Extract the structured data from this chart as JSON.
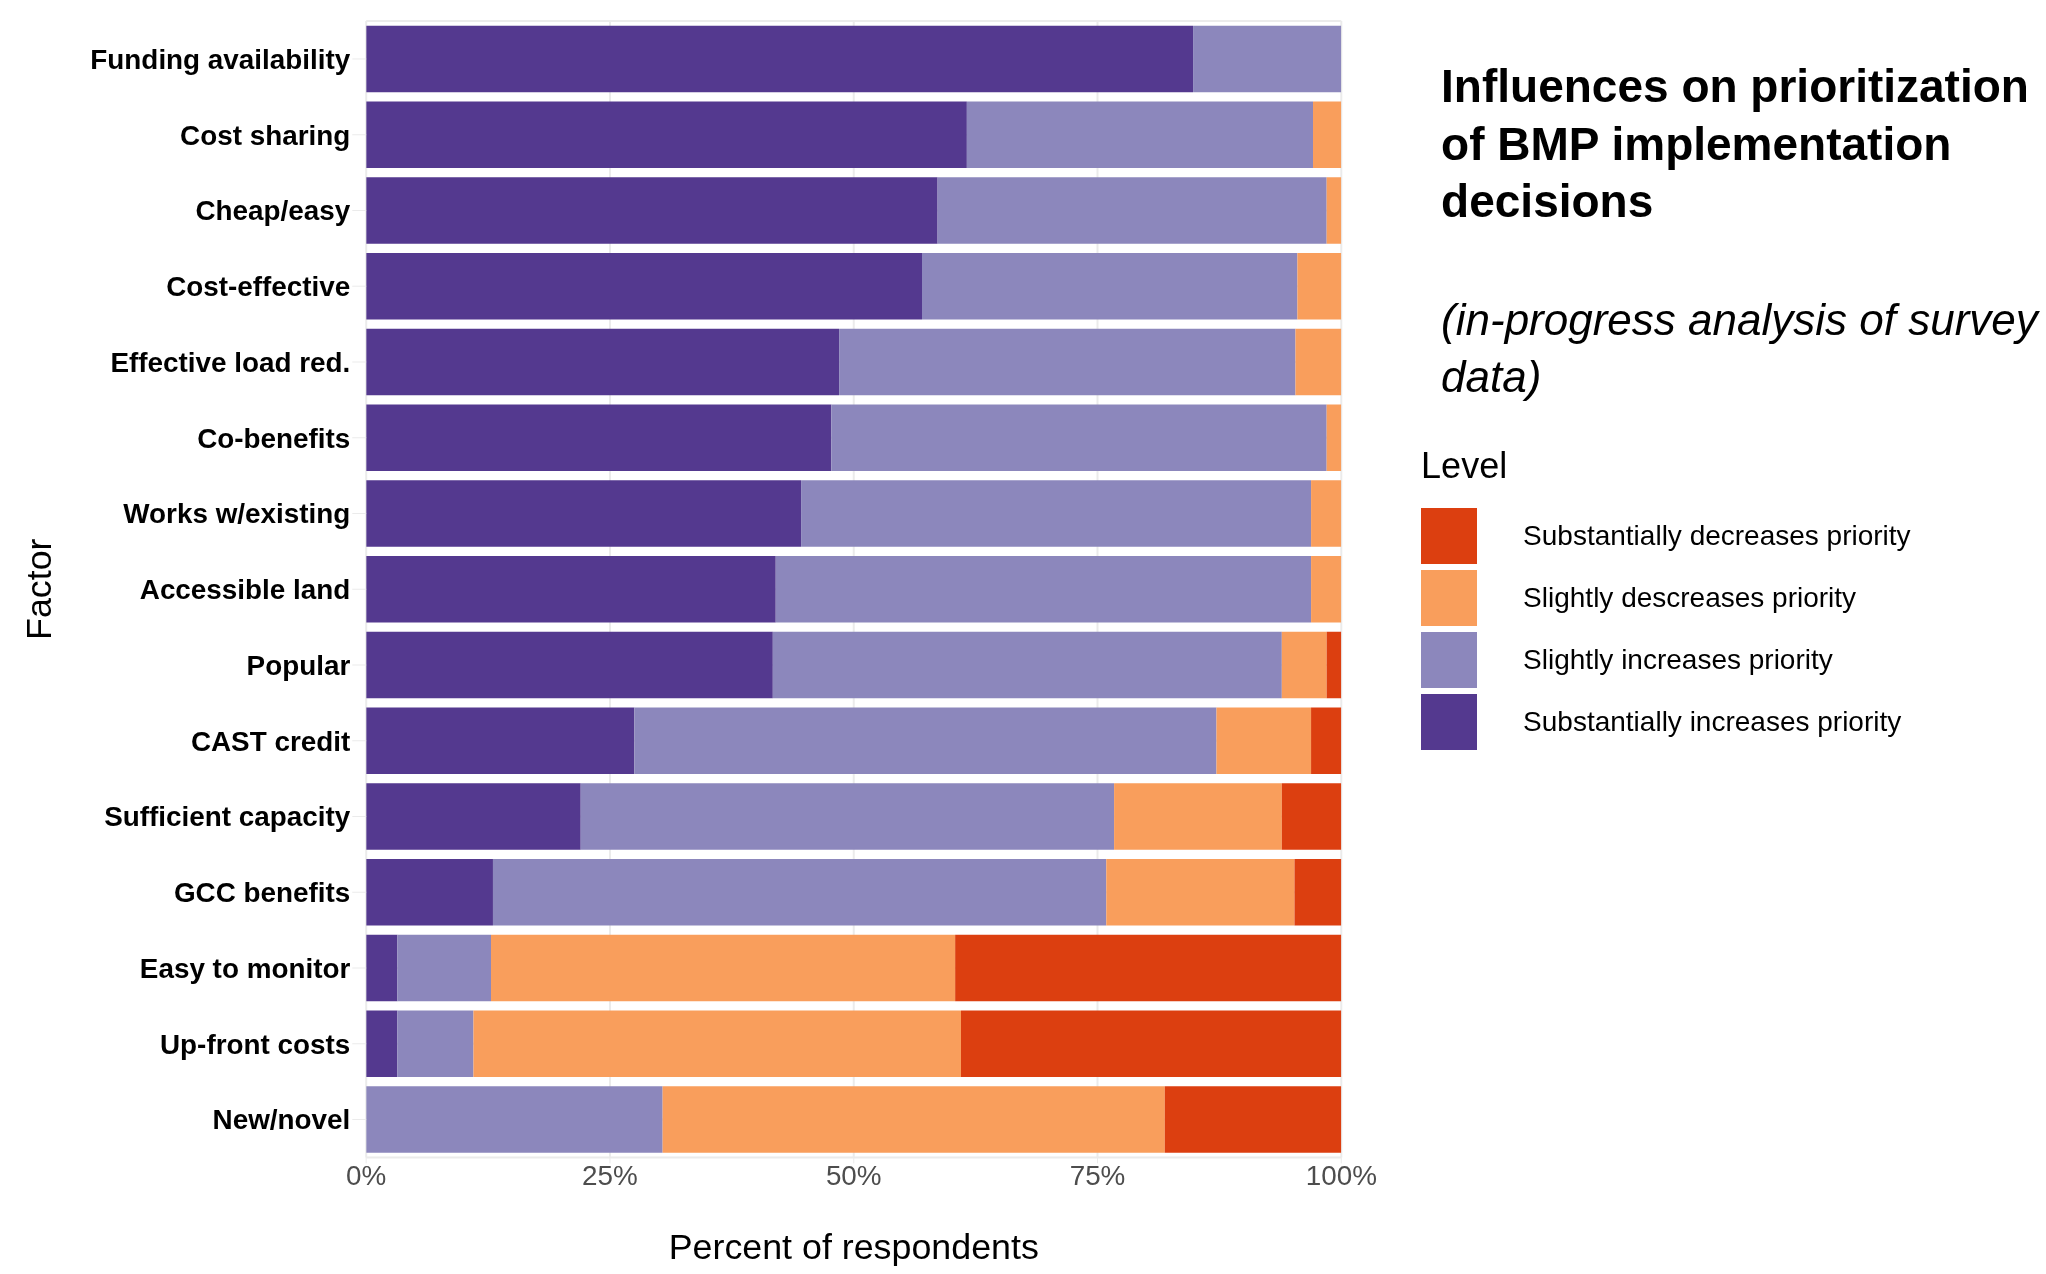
{
  "chart_data": {
    "type": "bar",
    "orientation": "horizontal",
    "stacked": true,
    "title": "Influences on prioritization of BMP implementation decisions",
    "subtitle": "(in-progress analysis of survey data)",
    "xlabel": "Percent of respondents",
    "ylabel": "Factor",
    "legend_title": "Level",
    "categories": [
      "Funding availability",
      "Cost sharing",
      "Cheap/easy",
      "Cost-effective",
      "Effective load red.",
      "Co-benefits",
      "Works w/existing",
      "Accessible land",
      "Popular",
      "CAST credit",
      "Sufficient capacity",
      "GCC benefits",
      "Easy to monitor",
      "Up-front costs",
      "New/novel"
    ],
    "series": [
      {
        "name": "Substantially increases priority",
        "color": "#54398f",
        "values": [
          84.8,
          61.6,
          58.6,
          57.0,
          48.5,
          47.7,
          44.6,
          42.0,
          41.7,
          27.5,
          22.0,
          13.0,
          3.2,
          3.2,
          0
        ]
      },
      {
        "name": "Slightly increases priority",
        "color": "#8c87bc",
        "values": [
          15.2,
          35.5,
          39.9,
          38.5,
          46.8,
          50.8,
          52.3,
          54.9,
          52.2,
          59.7,
          54.7,
          62.9,
          9.6,
          7.8,
          30.4
        ]
      },
      {
        "name": "Slightly descreases priority",
        "color": "#f99e5c",
        "values": [
          0,
          2.9,
          1.5,
          4.5,
          4.7,
          1.5,
          3.1,
          3.1,
          4.6,
          9.7,
          17.2,
          19.3,
          47.6,
          50.0,
          51.5
        ]
      },
      {
        "name": "Substantially decreases priority",
        "color": "#dc3f10",
        "values": [
          0,
          0,
          0,
          0,
          0,
          0,
          0,
          0,
          1.5,
          3.1,
          6.1,
          4.8,
          39.6,
          39.0,
          18.1
        ]
      }
    ],
    "xlim": [
      0,
      100
    ],
    "xticks": [
      {
        "value": 0,
        "label": "0%"
      },
      {
        "value": 25,
        "label": "25%"
      },
      {
        "value": 50,
        "label": "50%"
      },
      {
        "value": 75,
        "label": "75%"
      },
      {
        "value": 100,
        "label": "100%"
      }
    ],
    "grid": true,
    "legend": "right"
  }
}
